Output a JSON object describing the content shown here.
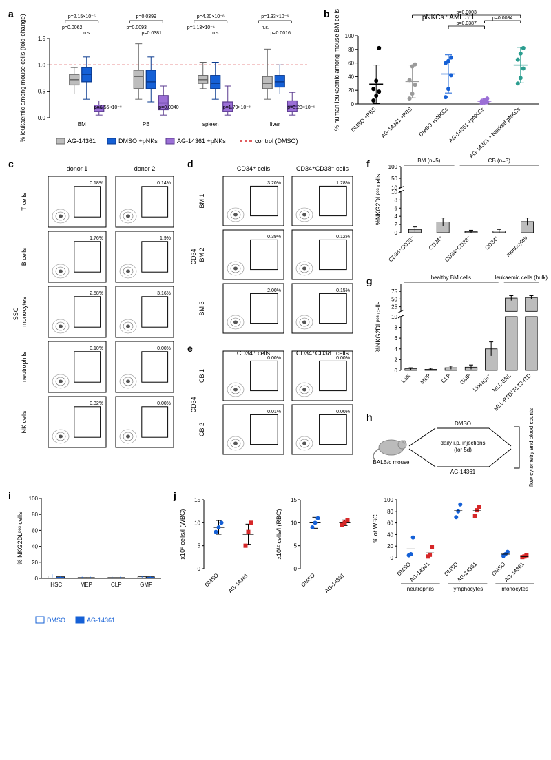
{
  "panel_a": {
    "label": "a",
    "ylabel": "% leukaemic among mouse cells (fold-change)",
    "ylim": [
      0,
      1.5
    ],
    "yticks": [
      0,
      0.5,
      1.0,
      1.5
    ],
    "groups": [
      "BM",
      "PB",
      "spleen",
      "liver"
    ],
    "series": [
      {
        "name": "AG-14361",
        "color": "#bdbdbd",
        "stroke": "#666"
      },
      {
        "name": "DMSO +pNKs",
        "color": "#1560d6",
        "stroke": "#0a3a8f"
      },
      {
        "name": "AG-14361 +pNKs",
        "color": "#9b6fd6",
        "stroke": "#5a3a8f"
      }
    ],
    "boxes": {
      "BM": [
        {
          "q1": 0.62,
          "med": 0.72,
          "q3": 0.82,
          "lo": 0.45,
          "hi": 0.95
        },
        {
          "q1": 0.68,
          "med": 0.82,
          "q3": 0.95,
          "lo": 0.35,
          "hi": 1.15
        },
        {
          "q1": 0.12,
          "med": 0.18,
          "q3": 0.24,
          "lo": 0.05,
          "hi": 0.32
        }
      ],
      "PB": [
        {
          "q1": 0.55,
          "med": 0.78,
          "q3": 0.9,
          "lo": 0.35,
          "hi": 1.4
        },
        {
          "q1": 0.55,
          "med": 0.68,
          "q3": 0.9,
          "lo": 0.3,
          "hi": 1.15
        },
        {
          "q1": 0.15,
          "med": 0.28,
          "q3": 0.42,
          "lo": 0.05,
          "hi": 0.6
        }
      ],
      "spleen": [
        {
          "q1": 0.65,
          "med": 0.72,
          "q3": 0.8,
          "lo": 0.55,
          "hi": 1.05
        },
        {
          "q1": 0.55,
          "med": 0.65,
          "q3": 0.8,
          "lo": 0.35,
          "hi": 1.05
        },
        {
          "q1": 0.12,
          "med": 0.2,
          "q3": 0.3,
          "lo": 0.05,
          "hi": 0.6
        }
      ],
      "liver": [
        {
          "q1": 0.55,
          "med": 0.65,
          "q3": 0.78,
          "lo": 0.35,
          "hi": 1.3
        },
        {
          "q1": 0.58,
          "med": 0.68,
          "q3": 0.8,
          "lo": 0.45,
          "hi": 1.0
        },
        {
          "q1": 0.12,
          "med": 0.22,
          "q3": 0.32,
          "lo": 0.05,
          "hi": 0.48
        }
      ]
    },
    "control_line": 1.0,
    "control_color": "#d62728",
    "pvals_top": {
      "BM": "p=2.15×10⁻⁵",
      "PB": "p=0.0399",
      "spleen": "p=4.20×10⁻⁶",
      "liver": "p=1.33×10⁻⁶"
    },
    "pvals_mid": {
      "BM": [
        "p=0.0062",
        "n.s."
      ],
      "PB": [
        "p=0.0093",
        "p=0.0381"
      ],
      "spleen": [
        "p=1.13×10⁻⁶",
        "n.s."
      ],
      "liver": [
        "n.s.",
        "p=0.0016"
      ]
    },
    "pvals_low": {
      "BM": "p=6.55×10⁻⁸",
      "PB": "p=0.0040",
      "spleen": "p=1.79×10⁻⁸",
      "liver": "p=3.23×10⁻⁶"
    },
    "legend_control": "control (DMSO)"
  },
  "panel_b": {
    "label": "b",
    "title": "pNKCs : AML 3:1",
    "ylabel": "% human leukaemic among mouse BM cells",
    "ylim": [
      0,
      100
    ],
    "yticks": [
      0,
      20,
      40,
      60,
      80,
      100
    ],
    "cats": [
      "DMSO +PBS",
      "AG-14361 +PBS",
      "DMSO +pNKCs",
      "AG-14361 +pNKCs",
      "AG-14361 + blocked pNKCs"
    ],
    "colors": [
      "#000000",
      "#9b9b9b",
      "#1560d6",
      "#9b6fd6",
      "#2a9d8f"
    ],
    "means": [
      29,
      33,
      44,
      4,
      57
    ],
    "sds": [
      28,
      24,
      28,
      4,
      26
    ],
    "points": [
      [
        5,
        12,
        18,
        22,
        34,
        82
      ],
      [
        8,
        15,
        28,
        35,
        55,
        58
      ],
      [
        10,
        22,
        42,
        60,
        63,
        68
      ],
      [
        1,
        2,
        3,
        4,
        6,
        8
      ],
      [
        30,
        38,
        52,
        65,
        74,
        82
      ]
    ],
    "pvals": [
      {
        "a": 2,
        "b": 3,
        "text": "p=0.0387"
      },
      {
        "a": 3,
        "b": 4,
        "text": "p=0.0084"
      },
      {
        "a": 1,
        "b": 4,
        "text": "p=0.0003"
      }
    ]
  },
  "panel_c": {
    "label": "c",
    "ylabel": "SSC",
    "cols": [
      "donor 1",
      "donor 2"
    ],
    "rows": [
      "T cells",
      "B cells",
      "monocytes",
      "neutrophils",
      "NK cells"
    ],
    "percents": [
      [
        "0.18%",
        "0.14%"
      ],
      [
        "1.76%",
        "1.9%"
      ],
      [
        "2.58%",
        "3.16%"
      ],
      [
        "0.10%",
        "0.00%"
      ],
      [
        "0.32%",
        "0.00%"
      ]
    ]
  },
  "panel_d": {
    "label": "d",
    "ylabel": "CD34",
    "cols": [
      "CD34⁺ cells",
      "CD34⁺CD38⁻ cells"
    ],
    "rows": [
      "BM 1",
      "BM 2",
      "BM 3"
    ],
    "percents": [
      [
        "3.20%",
        "1.28%"
      ],
      [
        "0.39%",
        "0.12%"
      ],
      [
        "2.00%",
        "0.15%"
      ]
    ]
  },
  "panel_e": {
    "label": "e",
    "ylabel": "CD34",
    "rows": [
      "CB 1",
      "CB 2"
    ],
    "percents": [
      [
        "0.00%",
        "0.00%"
      ],
      [
        "0.01%",
        "0.00%"
      ]
    ]
  },
  "panel_f": {
    "label": "f",
    "ylabel": "%NKG2DLᵖᵒˢ cells",
    "ybreak": {
      "low": [
        0,
        10
      ],
      "high": [
        10,
        100
      ]
    },
    "yticks_low": [
      0,
      2,
      4,
      6,
      8,
      10
    ],
    "yticks_high": [
      10,
      50,
      100
    ],
    "grouplabels": [
      {
        "text": "BM (n=5)",
        "span": [
          0,
          1
        ]
      },
      {
        "text": "CB (n=3)",
        "span": [
          2,
          4
        ]
      }
    ],
    "cats": [
      "CD34⁺CD38⁻",
      "CD34⁺",
      "CD34⁺CD38⁻",
      "CD34⁺",
      "monocytes"
    ],
    "values": [
      0.8,
      2.6,
      0.3,
      0.4,
      2.7
    ],
    "errs": [
      0.6,
      1.0,
      0.3,
      0.4,
      0.9
    ],
    "bar_color": "#bdbdbd"
  },
  "panel_g": {
    "label": "g",
    "ylabel": "%NKG2DLᵖᵒˢ cells",
    "ybreak": {
      "low": [
        0,
        10
      ],
      "high": [
        10,
        100
      ]
    },
    "yticks_low": [
      0,
      2,
      4,
      6,
      8,
      10
    ],
    "yticks_high": [
      25,
      50,
      75
    ],
    "grouplabels": [
      {
        "text": "healthy BM cells",
        "span": [
          0,
          4
        ]
      },
      {
        "text": "leukaemic cells (bulk)",
        "span": [
          5,
          6
        ]
      }
    ],
    "cats": [
      "LSK",
      "MEP",
      "CLP",
      "GMP",
      "Lineage⁺",
      "MLL-ENL",
      "MLL-PTD/ FLT3-ITD"
    ],
    "values": [
      0.3,
      0.2,
      0.5,
      0.6,
      4.0,
      53,
      55
    ],
    "errs": [
      0.2,
      0.2,
      0.3,
      0.4,
      1.3,
      8,
      6
    ],
    "bar_color": "#bdbdbd"
  },
  "panel_h": {
    "label": "h",
    "mouse_label": "BALB/c mouse",
    "center_text": "daily i.p. injections (for 5d)",
    "arm1": "DMSO",
    "arm2": "AG-14361",
    "right_text": "flow cytometry and blood counts"
  },
  "panel_i": {
    "label": "i",
    "ylabel": "% NKG2DLᵖᵒˢ cells",
    "ylim": [
      0,
      100
    ],
    "yticks": [
      0,
      20,
      40,
      60,
      80,
      100
    ],
    "cats": [
      "HSC",
      "MEP",
      "CLP",
      "GMP"
    ],
    "series": [
      {
        "name": "DMSO",
        "fill": "#ffffff",
        "stroke": "#1560d6"
      },
      {
        "name": "AG-14361",
        "fill": "#1560d6",
        "stroke": "#1560d6"
      }
    ],
    "values": [
      [
        3,
        2
      ],
      [
        1,
        1
      ],
      [
        1,
        1
      ],
      [
        2,
        2
      ]
    ],
    "errs": [
      [
        2,
        1
      ],
      [
        1,
        1
      ],
      [
        1,
        1
      ],
      [
        1,
        1
      ]
    ]
  },
  "panel_j": {
    "label": "j",
    "sub1": {
      "ylabel": "x10⁹ cells/l (WBC)",
      "ylim": [
        0,
        15
      ],
      "yticks": [
        0,
        5,
        10,
        15
      ],
      "cats": [
        "DMSO",
        "AG-14361"
      ],
      "colors": [
        "#1560d6",
        "#d62728"
      ],
      "means": [
        9,
        7.5
      ],
      "sds": [
        1.5,
        2.2
      ],
      "points": [
        [
          8,
          9,
          10
        ],
        [
          5,
          8,
          10
        ]
      ]
    },
    "sub2": {
      "ylabel": "x10¹² cells/l (RBC)",
      "ylim": [
        0,
        15
      ],
      "yticks": [
        0,
        5,
        10,
        15
      ],
      "cats": [
        "DMSO",
        "AG-14361"
      ],
      "colors": [
        "#1560d6",
        "#d62728"
      ],
      "means": [
        10,
        10
      ],
      "sds": [
        1.2,
        0.6
      ],
      "points": [
        [
          9,
          10,
          11
        ],
        [
          9.5,
          10,
          10.5
        ]
      ]
    },
    "sub3": {
      "ylabel": "% of WBC",
      "ylim": [
        0,
        100
      ],
      "yticks": [
        0,
        20,
        40,
        60,
        80,
        100
      ],
      "groups": [
        "neutrophils",
        "lymphocytes",
        "monocytes"
      ],
      "series": [
        {
          "name": "DMSO",
          "color": "#1560d6",
          "marker": "circle"
        },
        {
          "name": "AG-14361",
          "color": "#d62728",
          "marker": "square"
        }
      ],
      "points": {
        "neutrophils": [
          [
            4,
            6,
            35
          ],
          [
            2,
            5,
            18
          ]
        ],
        "lymphocytes": [
          [
            70,
            80,
            92
          ],
          [
            72,
            82,
            88
          ]
        ],
        "monocytes": [
          [
            3,
            6,
            10
          ],
          [
            1,
            2,
            4
          ]
        ]
      },
      "means": {
        "neutrophils": [
          15,
          8
        ],
        "lymphocytes": [
          81,
          81
        ],
        "monocytes": [
          6,
          2
        ]
      }
    }
  }
}
